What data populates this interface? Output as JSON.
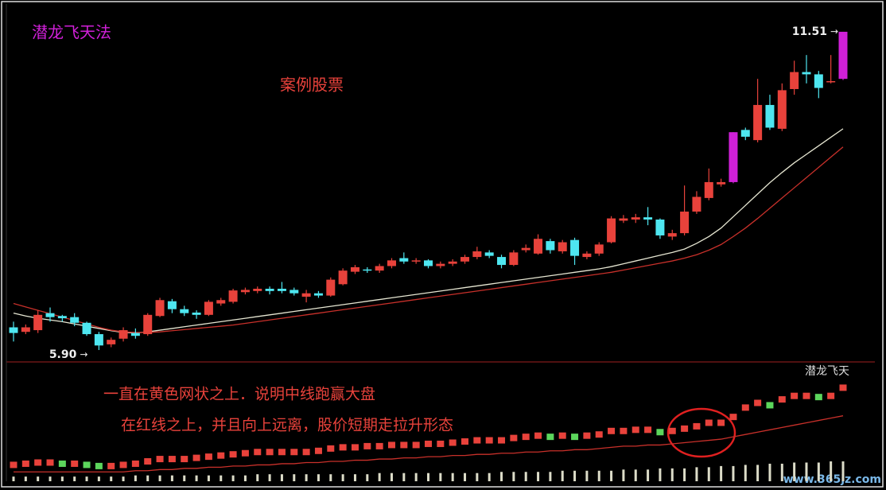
{
  "chart_data": [
    {
      "type": "candlestick",
      "title": "潜龙飞天法",
      "annotations": [
        "案例股票"
      ],
      "ylim": [
        5.69,
        12.0
      ],
      "up_color": "#e8423b",
      "down_color": "#4ee6f0",
      "limit_up_color": "#d020d8",
      "limit_up_indices": [
        59,
        68
      ],
      "max_label": 11.51,
      "min_label": {
        "value": 5.9,
        "label": "5.90"
      },
      "open": [
        6.3,
        6.22,
        6.25,
        6.55,
        6.5,
        6.48,
        6.38,
        6.18,
        6.0,
        6.1,
        6.2,
        6.18,
        6.5,
        6.76,
        6.62,
        6.56,
        6.52,
        6.72,
        6.75,
        6.92,
        6.94,
        6.98,
        6.98,
        6.96,
        6.84,
        6.9,
        6.86,
        7.06,
        7.28,
        7.32,
        7.3,
        7.38,
        7.52,
        7.46,
        7.48,
        7.38,
        7.42,
        7.46,
        7.54,
        7.62,
        7.54,
        7.4,
        7.66,
        7.6,
        7.82,
        7.64,
        7.84,
        7.54,
        7.6,
        7.8,
        8.18,
        8.2,
        8.24,
        8.2,
        7.9,
        7.96,
        8.34,
        8.58,
        8.82,
        8.86,
        9.78,
        9.6,
        10.22,
        9.8,
        10.5,
        10.8,
        10.76,
        10.62,
        10.68
      ],
      "close": [
        6.2,
        6.3,
        6.52,
        6.48,
        6.46,
        6.38,
        6.18,
        5.98,
        6.08,
        6.25,
        6.15,
        6.52,
        6.78,
        6.62,
        6.55,
        6.52,
        6.75,
        6.78,
        6.95,
        6.96,
        6.98,
        6.94,
        6.94,
        6.9,
        6.9,
        6.86,
        7.14,
        7.3,
        7.36,
        7.3,
        7.38,
        7.48,
        7.46,
        7.48,
        7.38,
        7.42,
        7.46,
        7.54,
        7.64,
        7.56,
        7.4,
        7.62,
        7.7,
        7.86,
        7.66,
        7.8,
        7.56,
        7.6,
        7.76,
        8.22,
        8.22,
        8.24,
        8.2,
        7.92,
        7.96,
        8.34,
        8.6,
        8.86,
        8.86,
        9.74,
        9.66,
        10.22,
        9.82,
        10.48,
        10.8,
        10.76,
        10.52,
        10.64,
        11.51
      ],
      "high": [
        6.4,
        6.35,
        6.6,
        6.65,
        6.52,
        6.55,
        6.4,
        6.22,
        6.12,
        6.3,
        6.28,
        6.55,
        6.82,
        6.8,
        6.68,
        6.6,
        6.78,
        6.82,
        6.98,
        7.0,
        7.02,
        7.02,
        7.1,
        7.0,
        6.96,
        6.94,
        7.18,
        7.34,
        7.4,
        7.36,
        7.42,
        7.52,
        7.62,
        7.52,
        7.5,
        7.46,
        7.5,
        7.58,
        7.72,
        7.66,
        7.58,
        7.66,
        7.76,
        7.94,
        7.86,
        7.84,
        7.88,
        7.64,
        7.8,
        8.26,
        8.28,
        8.3,
        8.42,
        8.22,
        8.02,
        8.8,
        8.7,
        9.1,
        8.92,
        9.74,
        9.82,
        10.68,
        10.4,
        10.6,
        11.0,
        11.1,
        10.82,
        11.1,
        11.51
      ],
      "low": [
        6.05,
        6.18,
        6.2,
        6.4,
        6.4,
        6.32,
        6.15,
        5.9,
        5.95,
        6.05,
        6.1,
        6.15,
        6.48,
        6.55,
        6.5,
        6.45,
        6.5,
        6.68,
        6.72,
        6.88,
        6.9,
        6.88,
        6.9,
        6.86,
        6.74,
        6.82,
        6.84,
        7.04,
        7.24,
        7.26,
        7.26,
        7.34,
        7.42,
        7.42,
        7.34,
        7.34,
        7.38,
        7.42,
        7.5,
        7.52,
        7.34,
        7.38,
        7.62,
        7.58,
        7.6,
        7.6,
        7.4,
        7.5,
        7.56,
        7.78,
        8.14,
        8.14,
        8.1,
        7.86,
        7.84,
        7.92,
        8.3,
        8.54,
        8.78,
        8.84,
        9.6,
        9.56,
        9.78,
        9.76,
        10.4,
        10.6,
        10.34,
        10.6,
        10.66
      ],
      "series": [
        {
          "color": "#e6e6d2",
          "values": [
            6.55,
            6.5,
            6.46,
            6.43,
            6.4,
            6.36,
            6.32,
            6.28,
            6.24,
            6.21,
            6.2,
            6.22,
            6.25,
            6.28,
            6.31,
            6.34,
            6.37,
            6.4,
            6.43,
            6.46,
            6.49,
            6.52,
            6.55,
            6.58,
            6.61,
            6.64,
            6.67,
            6.7,
            6.73,
            6.76,
            6.79,
            6.82,
            6.85,
            6.88,
            6.91,
            6.94,
            6.97,
            7.0,
            7.03,
            7.06,
            7.09,
            7.12,
            7.15,
            7.18,
            7.21,
            7.24,
            7.27,
            7.3,
            7.33,
            7.37,
            7.42,
            7.47,
            7.52,
            7.57,
            7.62,
            7.68,
            7.78,
            7.9,
            8.05,
            8.25,
            8.45,
            8.65,
            8.85,
            9.03,
            9.2,
            9.35,
            9.5,
            9.65,
            9.8
          ]
        },
        {
          "color": "#c8302a",
          "values": [
            6.72,
            6.66,
            6.6,
            6.54,
            6.48,
            6.42,
            6.36,
            6.3,
            6.25,
            6.22,
            6.21,
            6.21,
            6.22,
            6.24,
            6.26,
            6.28,
            6.3,
            6.32,
            6.34,
            6.37,
            6.4,
            6.43,
            6.46,
            6.49,
            6.52,
            6.55,
            6.58,
            6.61,
            6.64,
            6.67,
            6.7,
            6.73,
            6.76,
            6.79,
            6.82,
            6.85,
            6.88,
            6.91,
            6.94,
            6.97,
            7.0,
            7.03,
            7.06,
            7.09,
            7.12,
            7.15,
            7.18,
            7.21,
            7.24,
            7.27,
            7.31,
            7.35,
            7.39,
            7.43,
            7.47,
            7.52,
            7.58,
            7.66,
            7.76,
            7.9,
            8.05,
            8.22,
            8.4,
            8.58,
            8.76,
            8.94,
            9.12,
            9.3,
            9.48
          ]
        }
      ]
    },
    {
      "type": "indicator",
      "title": "潜龙飞天",
      "annotations": [
        "一直在黄色网状之上．说明中线跑赢大盘",
        "在红线之上，并且向上远离，股价短期走拉升形态"
      ],
      "ylim": [
        0,
        100
      ],
      "up_color": "#e8423b",
      "down_color": "#5cd65c",
      "values": [
        14,
        15,
        16,
        16,
        15,
        15,
        14,
        13,
        13,
        14,
        15,
        17,
        19,
        19,
        19,
        20,
        21,
        22,
        23,
        24,
        25,
        25,
        25,
        25,
        25,
        26,
        28,
        29,
        29,
        30,
        30,
        31,
        31,
        31,
        32,
        32,
        33,
        34,
        35,
        35,
        35,
        37,
        38,
        39,
        38,
        39,
        38,
        39,
        40,
        43,
        43,
        44,
        44,
        42,
        43,
        45,
        47,
        50,
        50,
        55,
        63,
        67,
        65,
        70,
        73,
        73,
        72,
        73,
        80
      ],
      "line": {
        "color": "#c8302a",
        "values": [
          8,
          8,
          8,
          8,
          8,
          8,
          8,
          8,
          8,
          8,
          9,
          9,
          10,
          10,
          11,
          11,
          12,
          12,
          13,
          13,
          14,
          14,
          15,
          15,
          16,
          16,
          17,
          17,
          18,
          18,
          19,
          19,
          20,
          20,
          21,
          21,
          22,
          22,
          23,
          23,
          24,
          24,
          25,
          25,
          26,
          26,
          27,
          27,
          28,
          29,
          30,
          30,
          31,
          31,
          32,
          33,
          34,
          35,
          36,
          38,
          40,
          42,
          44,
          46,
          48,
          50,
          52,
          54,
          56
        ]
      },
      "bars": {
        "color": "#dcdcc8",
        "values": [
          4,
          4,
          4,
          4,
          4,
          4,
          4,
          4,
          4,
          4,
          5,
          5,
          5,
          5,
          5,
          5,
          5,
          5,
          5,
          5,
          6,
          6,
          6,
          6,
          6,
          6,
          6,
          6,
          6,
          6,
          7,
          7,
          7,
          7,
          7,
          7,
          7,
          7,
          7,
          7,
          8,
          8,
          8,
          8,
          8,
          9,
          9,
          9,
          9,
          9,
          10,
          10,
          10,
          11,
          11,
          11,
          12,
          12,
          13,
          13,
          14,
          14,
          15,
          15,
          16,
          16,
          16,
          17,
          17
        ]
      }
    }
  ],
  "watermark": "www.365jz.com"
}
